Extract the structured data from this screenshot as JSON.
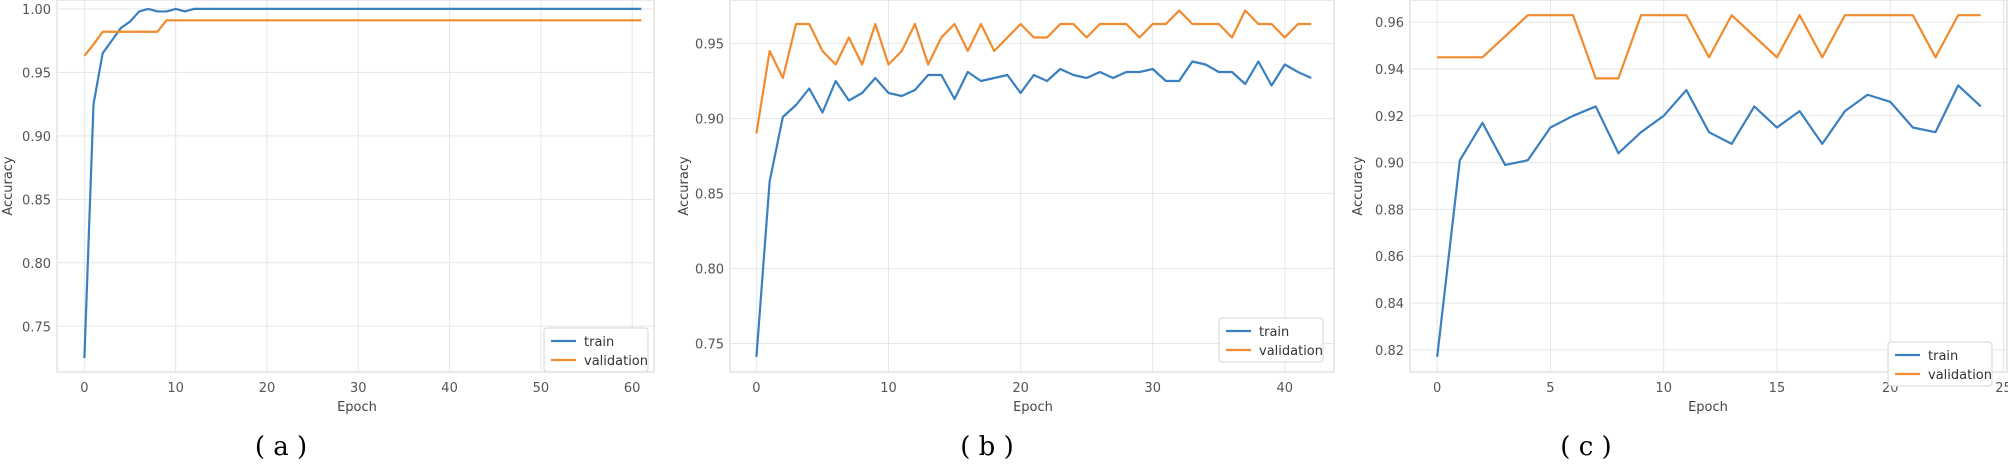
{
  "figure": {
    "colors": {
      "train": "#3a7fbf",
      "validation": "#f28a2e",
      "grid": "#e6e6e6",
      "frame": "#dcdcdc"
    }
  },
  "chart_data": [
    {
      "id": "a",
      "caption": "( a )",
      "type": "line",
      "xlabel": "Epoch",
      "ylabel": "Accuracy",
      "xlim": [
        -3,
        62.5
      ],
      "ylim": [
        0.714,
        1.007
      ],
      "xticks": [
        0,
        10,
        20,
        30,
        40,
        50,
        60
      ],
      "yticks": [
        0.75,
        0.8,
        0.85,
        0.9,
        0.95,
        1.0
      ],
      "ytick_labels": [
        "0.75",
        "0.80",
        "0.85",
        "0.90",
        "0.95",
        "1.00"
      ],
      "grid": true,
      "legend": "bottom-right",
      "series": [
        {
          "name": "train",
          "x": [
            0,
            1,
            2,
            3,
            4,
            5,
            6,
            7,
            8,
            9,
            10,
            11,
            12,
            13,
            61
          ],
          "y": [
            0.725,
            0.925,
            0.965,
            0.975,
            0.985,
            0.99,
            0.998,
            1.0,
            0.998,
            0.998,
            1.0,
            0.998,
            1.0,
            1.0,
            1.0
          ]
        },
        {
          "name": "validation",
          "x": [
            0,
            1,
            2,
            3,
            4,
            5,
            6,
            7,
            8,
            9,
            61
          ],
          "y": [
            0.963,
            0.972,
            0.982,
            0.982,
            0.982,
            0.982,
            0.982,
            0.982,
            0.982,
            0.991,
            0.991
          ]
        }
      ]
    },
    {
      "id": "b",
      "caption": "( b )",
      "type": "line",
      "xlabel": "Epoch",
      "ylabel": "Accuracy",
      "xlim": [
        -2,
        43.8
      ],
      "ylim": [
        0.731,
        0.979
      ],
      "xticks": [
        0,
        10,
        20,
        30,
        40
      ],
      "yticks": [
        0.75,
        0.8,
        0.85,
        0.9,
        0.95
      ],
      "ytick_labels": [
        "0.75",
        "0.80",
        "0.85",
        "0.90",
        "0.95"
      ],
      "grid": true,
      "legend": "bottom-right",
      "series": [
        {
          "name": "train",
          "x": [
            0,
            1,
            2,
            3,
            4,
            5,
            6,
            7,
            8,
            9,
            10,
            11,
            12,
            13,
            14,
            15,
            16,
            17,
            18,
            19,
            20,
            21,
            22,
            23,
            24,
            25,
            26,
            27,
            28,
            29,
            30,
            31,
            32,
            33,
            34,
            35,
            36,
            37,
            38,
            39,
            40,
            41,
            42
          ],
          "y": [
            0.741,
            0.858,
            0.901,
            0.909,
            0.92,
            0.904,
            0.925,
            0.912,
            0.917,
            0.927,
            0.917,
            0.915,
            0.919,
            0.929,
            0.929,
            0.913,
            0.931,
            0.925,
            0.927,
            0.929,
            0.917,
            0.929,
            0.925,
            0.933,
            0.929,
            0.927,
            0.931,
            0.927,
            0.931,
            0.931,
            0.933,
            0.925,
            0.925,
            0.938,
            0.936,
            0.931,
            0.931,
            0.923,
            0.938,
            0.922,
            0.936,
            0.931,
            0.927
          ]
        },
        {
          "name": "validation",
          "x": [
            0,
            1,
            2,
            3,
            4,
            5,
            6,
            7,
            8,
            9,
            10,
            11,
            12,
            13,
            14,
            15,
            16,
            17,
            18,
            19,
            20,
            21,
            22,
            23,
            24,
            25,
            26,
            27,
            28,
            29,
            30,
            31,
            32,
            33,
            34,
            35,
            36,
            37,
            38,
            39,
            40,
            41,
            42
          ],
          "y": [
            0.89,
            0.945,
            0.927,
            0.963,
            0.963,
            0.945,
            0.936,
            0.954,
            0.936,
            0.963,
            0.936,
            0.945,
            0.963,
            0.936,
            0.954,
            0.963,
            0.945,
            0.963,
            0.945,
            0.954,
            0.963,
            0.954,
            0.954,
            0.963,
            0.963,
            0.954,
            0.963,
            0.963,
            0.963,
            0.954,
            0.963,
            0.963,
            0.972,
            0.963,
            0.963,
            0.963,
            0.954,
            0.972,
            0.963,
            0.963,
            0.954,
            0.963,
            0.963
          ]
        }
      ]
    },
    {
      "id": "c",
      "caption": "( c )",
      "type": "line",
      "xlabel": "Epoch",
      "ylabel": "Accuracy",
      "xlim": [
        -1.2,
        25.2
      ],
      "ylim": [
        0.8105,
        0.9695
      ],
      "xticks": [
        0,
        5,
        10,
        15,
        20,
        25
      ],
      "yticks": [
        0.82,
        0.84,
        0.86,
        0.88,
        0.9,
        0.92,
        0.94,
        0.96
      ],
      "ytick_labels": [
        "0.82",
        "0.84",
        "0.86",
        "0.88",
        "0.90",
        "0.92",
        "0.94",
        "0.96"
      ],
      "grid": true,
      "legend": "bottom-right",
      "series": [
        {
          "name": "train",
          "x": [
            0,
            1,
            2,
            3,
            4,
            5,
            6,
            7,
            8,
            9,
            10,
            11,
            12,
            13,
            14,
            15,
            16,
            17,
            18,
            19,
            20,
            21,
            22,
            23,
            24
          ],
          "y": [
            0.817,
            0.901,
            0.917,
            0.899,
            0.901,
            0.915,
            0.92,
            0.924,
            0.904,
            0.913,
            0.92,
            0.931,
            0.913,
            0.908,
            0.924,
            0.915,
            0.922,
            0.908,
            0.922,
            0.929,
            0.926,
            0.915,
            0.913,
            0.933,
            0.924
          ]
        },
        {
          "name": "validation",
          "x": [
            0,
            1,
            2,
            3,
            4,
            5,
            6,
            7,
            8,
            9,
            10,
            11,
            12,
            13,
            14,
            15,
            16,
            17,
            18,
            19,
            20,
            21,
            22,
            23,
            24
          ],
          "y": [
            0.945,
            0.945,
            0.945,
            0.954,
            0.963,
            0.963,
            0.963,
            0.936,
            0.936,
            0.963,
            0.963,
            0.963,
            0.945,
            0.963,
            0.954,
            0.945,
            0.963,
            0.945,
            0.963,
            0.963,
            0.963,
            0.963,
            0.945,
            0.963,
            0.963
          ]
        }
      ]
    }
  ]
}
